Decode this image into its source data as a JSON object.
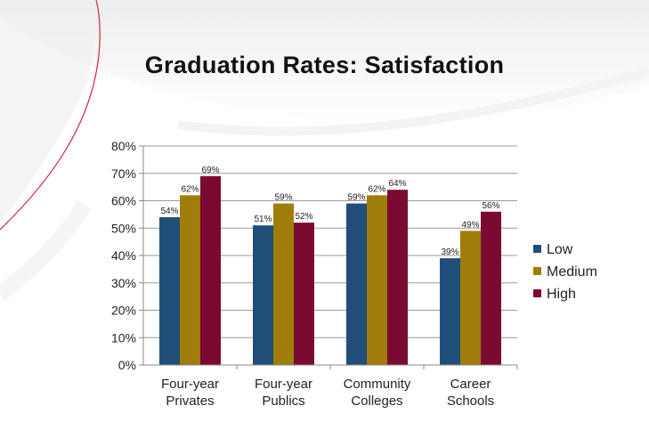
{
  "title": "Graduation Rates: Satisfaction",
  "colors": {
    "low": "#1f4e79",
    "medium": "#a07d0b",
    "high": "#7b0a32",
    "accent": "#d2213f"
  },
  "chart_data": {
    "type": "bar",
    "title": "Graduation Rates: Satisfaction",
    "categories": [
      [
        "Four-year",
        "Privates"
      ],
      [
        "Four-year",
        "Publics"
      ],
      [
        "Community",
        "Colleges"
      ],
      [
        "Career",
        "Schools"
      ]
    ],
    "series": [
      {
        "name": "Low",
        "color": "#1f4e79",
        "values": [
          54,
          51,
          59,
          39
        ],
        "labels": [
          "54%",
          "51%",
          "59%",
          "39%"
        ]
      },
      {
        "name": "Medium",
        "color": "#a07d0b",
        "values": [
          62,
          59,
          62,
          49
        ],
        "labels": [
          "62%",
          "59%",
          "62%",
          "49%"
        ]
      },
      {
        "name": "High",
        "color": "#7b0a32",
        "values": [
          69,
          52,
          64,
          56
        ],
        "labels": [
          "69%",
          "52%",
          "64%",
          "56%"
        ]
      }
    ],
    "ylim": [
      0,
      80
    ],
    "yticks": [
      "0%",
      "10%",
      "20%",
      "30%",
      "40%",
      "50%",
      "60%",
      "70%",
      "80%"
    ],
    "grid": true,
    "legend_position": "right"
  }
}
